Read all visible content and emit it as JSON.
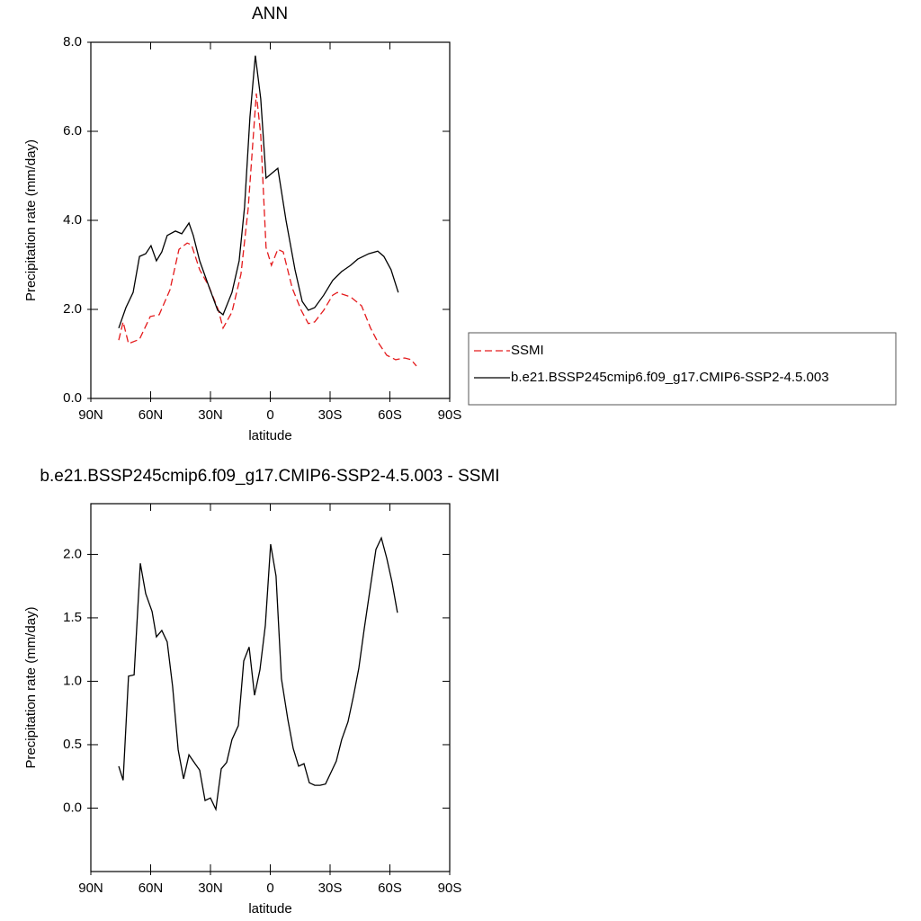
{
  "chart_data": [
    {
      "type": "line",
      "title": "ANN",
      "xlabel": "latitude",
      "ylabel": "Precipitation rate (mm/day)",
      "xlim": [
        90,
        -90
      ],
      "xticks": [
        {
          "value": 90,
          "label": "90N"
        },
        {
          "value": 60,
          "label": "60N"
        },
        {
          "value": 30,
          "label": "30N"
        },
        0,
        {
          "value": -30,
          "label": "30S"
        },
        {
          "value": -60,
          "label": "60S"
        },
        {
          "value": -90,
          "label": "90S"
        }
      ],
      "ylim": [
        0,
        8
      ],
      "yticks": [
        {
          "value": 0,
          "label": "0.0"
        },
        {
          "value": 2,
          "label": "2.0"
        },
        {
          "value": 4,
          "label": "4.0"
        },
        {
          "value": 6,
          "label": "6.0"
        },
        {
          "value": 8,
          "label": "8.0"
        }
      ],
      "legend": "right",
      "series": [
        {
          "name": "SSMI",
          "color": "#e41a1c",
          "style": "dashed",
          "x": [
            76.0,
            73.8,
            71.1,
            65.6,
            60.2,
            55.7,
            50.3,
            45.8,
            41.7,
            39.5,
            35.4,
            30.9,
            26.0,
            23.7,
            19.2,
            14.7,
            11.1,
            7.0,
            4.8,
            2.1,
            -0.6,
            -3.8,
            -6.5,
            -11.0,
            -15.5,
            -19.1,
            -22.3,
            -26.8,
            -31.3,
            -33.6,
            -40.3,
            -45.8,
            -50.3,
            -53.9,
            -58.4,
            -62.9,
            -67.4,
            -70.6,
            -73.3
          ],
          "values": [
            1.31,
            1.72,
            1.23,
            1.33,
            1.84,
            1.88,
            2.44,
            3.35,
            3.49,
            3.45,
            2.89,
            2.53,
            1.98,
            1.58,
            1.94,
            2.79,
            4.26,
            6.85,
            5.92,
            3.39,
            2.99,
            3.35,
            3.29,
            2.48,
            1.98,
            1.68,
            1.72,
            1.98,
            2.32,
            2.38,
            2.28,
            2.08,
            1.58,
            1.27,
            0.97,
            0.87,
            0.91,
            0.87,
            0.73
          ]
        },
        {
          "name": "b.e21.BSSP245cmip6.f09_g17.CMIP6-SSP2-4.5.003",
          "color": "#000000",
          "style": "solid",
          "x": [
            76.0,
            72.4,
            68.8,
            65.6,
            62.5,
            59.8,
            57.1,
            54.4,
            51.7,
            47.6,
            44.4,
            40.8,
            38.6,
            35.4,
            30.9,
            26.4,
            23.7,
            19.2,
            15.6,
            12.9,
            10.2,
            7.5,
            4.8,
            2.1,
            -0.6,
            -3.8,
            -7.9,
            -12.4,
            -16.0,
            -19.1,
            -22.3,
            -26.8,
            -31.3,
            -35.8,
            -40.3,
            -43.9,
            -49.4,
            -53.9,
            -57.0,
            -60.6,
            -64.2
          ],
          "values": [
            1.58,
            2.04,
            2.38,
            3.19,
            3.25,
            3.43,
            3.09,
            3.29,
            3.66,
            3.76,
            3.7,
            3.94,
            3.66,
            3.09,
            2.53,
            1.98,
            1.88,
            2.38,
            3.09,
            4.3,
            6.32,
            7.7,
            6.73,
            4.95,
            5.05,
            5.17,
            4.0,
            2.89,
            2.18,
            1.98,
            2.04,
            2.32,
            2.65,
            2.85,
            2.99,
            3.13,
            3.25,
            3.31,
            3.19,
            2.89,
            2.38
          ]
        }
      ]
    },
    {
      "type": "line",
      "title": "b.e21.BSSP245cmip6.f09_g17.CMIP6-SSP2-4.5.003 - SSMI",
      "xlabel": "latitude",
      "ylabel": "Precipitation rate (mm/day)",
      "xlim": [
        90,
        -90
      ],
      "xticks": [
        {
          "value": 90,
          "label": "90N"
        },
        {
          "value": 60,
          "label": "60N"
        },
        {
          "value": 30,
          "label": "30N"
        },
        0,
        {
          "value": -30,
          "label": "30S"
        },
        {
          "value": -60,
          "label": "60S"
        },
        {
          "value": -90,
          "label": "90S"
        }
      ],
      "ylim": [
        -0.5,
        2.4
      ],
      "yticks": [
        {
          "value": 0,
          "label": "0.0"
        },
        0.5,
        {
          "value": 1,
          "label": "1.0"
        },
        1.5,
        {
          "value": 2,
          "label": "2.0"
        }
      ],
      "series": [
        {
          "color": "#000000",
          "style": "solid",
          "x": [
            76.0,
            73.8,
            71.1,
            68.3,
            65.2,
            62.5,
            59.3,
            57.1,
            54.4,
            51.7,
            49.0,
            46.2,
            43.5,
            40.8,
            37.7,
            35.4,
            32.7,
            30.0,
            27.3,
            24.6,
            21.9,
            19.2,
            16.0,
            13.3,
            10.6,
            7.9,
            5.2,
            2.5,
            -0.2,
            -2.9,
            -5.6,
            -8.8,
            -11.5,
            -14.2,
            -16.9,
            -19.6,
            -22.3,
            -25.0,
            -27.7,
            -30.4,
            -33.1,
            -35.8,
            -39.0,
            -41.7,
            -44.4,
            -47.1,
            -49.8,
            -53.0,
            -55.7,
            -58.4,
            -61.1,
            -63.8
          ],
          "values": [
            0.33,
            0.22,
            1.04,
            1.05,
            1.93,
            1.69,
            1.55,
            1.35,
            1.4,
            1.31,
            0.96,
            0.46,
            0.23,
            0.42,
            0.35,
            0.3,
            0.06,
            0.08,
            -0.01,
            0.31,
            0.36,
            0.54,
            0.65,
            1.16,
            1.27,
            0.89,
            1.09,
            1.44,
            2.08,
            1.83,
            1.02,
            0.7,
            0.47,
            0.33,
            0.35,
            0.2,
            0.18,
            0.18,
            0.19,
            0.28,
            0.37,
            0.54,
            0.68,
            0.88,
            1.1,
            1.41,
            1.7,
            2.04,
            2.13,
            1.97,
            1.78,
            1.54
          ]
        }
      ]
    }
  ]
}
